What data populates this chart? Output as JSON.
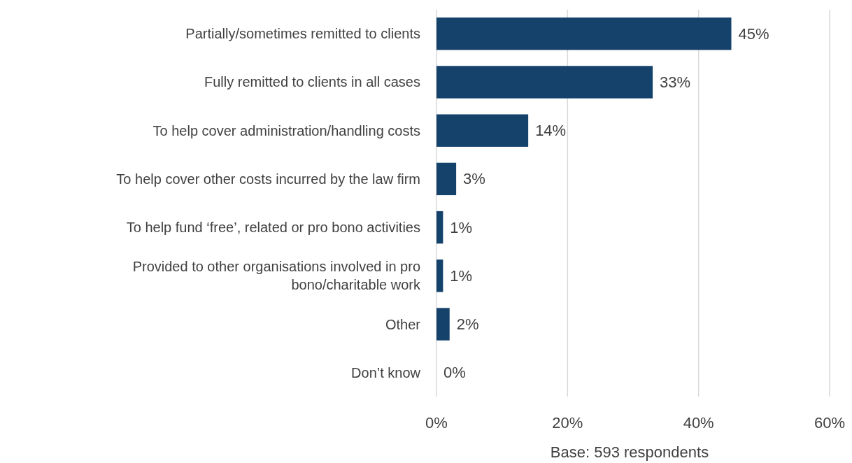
{
  "chart_data": {
    "type": "bar",
    "orientation": "horizontal",
    "categories": [
      "Partially/sometimes remitted to clients",
      "Fully remitted to clients in all cases",
      "To help cover administration/handling costs",
      "To help cover other costs incurred by the law firm",
      "To help fund ‘free’, related or pro bono activities",
      "Provided to other organisations involved in pro bono/charitable work",
      "Other",
      "Don’t know"
    ],
    "values": [
      45,
      33,
      14,
      3,
      1,
      1,
      2,
      0
    ],
    "value_labels": [
      "45%",
      "33%",
      "14%",
      "3%",
      "1%",
      "1%",
      "2%",
      "0%"
    ],
    "color": "#14426b",
    "xlim": [
      0,
      60
    ],
    "xticks": [
      {
        "value": 0,
        "label": "0%"
      },
      {
        "value": 20,
        "label": "20%"
      },
      {
        "value": 40,
        "label": "40%"
      },
      {
        "value": 60,
        "label": "60%"
      }
    ],
    "grid": "x",
    "xlabel": "Base: 593 respondents"
  }
}
